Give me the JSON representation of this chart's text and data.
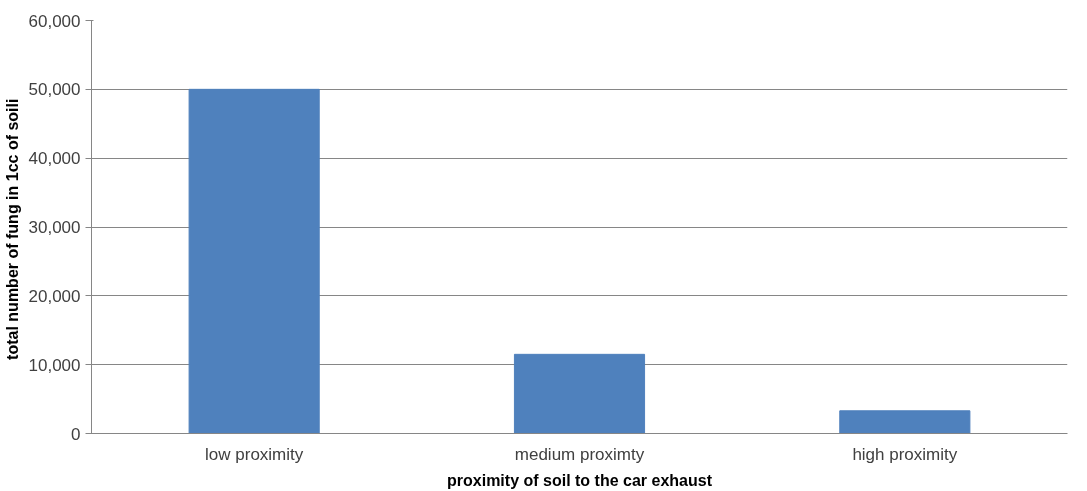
{
  "chart_data": {
    "type": "bar",
    "xlabel": "proximity of soil to the car exhaust",
    "ylabel": "total number of fung in  1cc of soili",
    "categories": [
      "low proximity",
      "medium proximty",
      "high proximity"
    ],
    "values": [
      50000,
      11500,
      3300
    ],
    "color": "#4f81bd",
    "ylim": [
      0,
      60000
    ],
    "yticks": [
      {
        "value": 0,
        "label": "0"
      },
      {
        "value": 10000,
        "label": "10,000"
      },
      {
        "value": 20000,
        "label": "20,000"
      },
      {
        "value": 30000,
        "label": "30,000"
      },
      {
        "value": 40000,
        "label": "40,000"
      },
      {
        "value": 50000,
        "label": "50,000"
      },
      {
        "value": 60000,
        "label": "60,000"
      }
    ],
    "grid": "y"
  }
}
